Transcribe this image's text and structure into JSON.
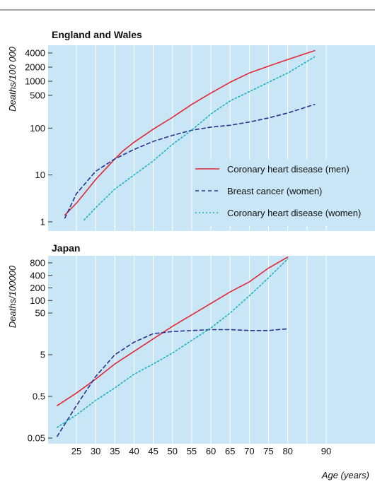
{
  "chart_data": [
    {
      "type": "line",
      "title": "England and Wales",
      "ylabel": "Deaths/100 000",
      "yscale": "log",
      "ylim": [
        0.8,
        5000
      ],
      "xlim": [
        20,
        95
      ],
      "yticks": [
        {
          "value": 1,
          "label": "1"
        },
        {
          "value": 10,
          "label": "10"
        },
        {
          "value": 100,
          "label": "100"
        },
        {
          "value": 500,
          "label": "500"
        },
        {
          "value": 1000,
          "label": "1000"
        },
        {
          "value": 2000,
          "label": "2000"
        },
        {
          "value": 4000,
          "label": "4000"
        }
      ],
      "legend_position": "lower-right",
      "series": [
        {
          "name": "Coronary heart disease (men)",
          "color": "#e32636",
          "dash": "solid",
          "x": [
            22,
            25,
            30,
            35,
            37,
            40,
            45,
            50,
            55,
            60,
            65,
            70,
            75,
            80,
            87
          ],
          "y": [
            1.4,
            2.5,
            8,
            22,
            32,
            50,
            95,
            170,
            320,
            560,
            950,
            1500,
            2100,
            2900,
            4500
          ]
        },
        {
          "name": "Breast cancer (women)",
          "color": "#2b2f8f",
          "dash": "dashed",
          "x": [
            22,
            25,
            30,
            35,
            40,
            45,
            50,
            55,
            60,
            65,
            70,
            75,
            80,
            87
          ],
          "y": [
            1.2,
            4,
            12,
            22,
            35,
            52,
            70,
            90,
            105,
            115,
            135,
            165,
            210,
            320
          ]
        },
        {
          "name": "Coronary heart disease (women)",
          "color": "#1ab0c4",
          "dash": "dotted",
          "x": [
            27,
            30,
            35,
            40,
            45,
            50,
            55,
            60,
            65,
            70,
            75,
            80,
            87
          ],
          "y": [
            1.1,
            2,
            5,
            10,
            20,
            45,
            90,
            200,
            380,
            600,
            950,
            1500,
            3300
          ]
        }
      ]
    },
    {
      "type": "line",
      "title": "Japan",
      "ylabel": "Deaths/100000",
      "xlabel": "Age (years)",
      "yscale": "log",
      "ylim": [
        0.04,
        1200
      ],
      "xlim": [
        20,
        95
      ],
      "xticks": [
        25,
        30,
        35,
        40,
        45,
        50,
        55,
        60,
        65,
        70,
        75,
        80,
        90
      ],
      "yticks": [
        {
          "value": 0.05,
          "label": "0.05"
        },
        {
          "value": 0.5,
          "label": "0.5"
        },
        {
          "value": 5,
          "label": "5"
        },
        {
          "value": 50,
          "label": "50"
        },
        {
          "value": 100,
          "label": "100"
        },
        {
          "value": 200,
          "label": "200"
        },
        {
          "value": 400,
          "label": "400"
        },
        {
          "value": 800,
          "label": "800"
        }
      ],
      "series": [
        {
          "name": "Coronary heart disease (men)",
          "color": "#e32636",
          "dash": "solid",
          "x": [
            20,
            25,
            30,
            35,
            40,
            45,
            50,
            55,
            60,
            65,
            70,
            75,
            80
          ],
          "y": [
            0.3,
            0.6,
            1.3,
            3,
            6,
            12,
            24,
            45,
            85,
            160,
            280,
            600,
            1100
          ]
        },
        {
          "name": "Breast cancer (women)",
          "color": "#2b2f8f",
          "dash": "dashed",
          "x": [
            20,
            25,
            30,
            35,
            40,
            45,
            50,
            55,
            60,
            65,
            70,
            75,
            80
          ],
          "y": [
            0.055,
            0.3,
            1.5,
            5,
            10,
            16,
            18,
            19,
            20,
            20,
            19,
            19,
            21
          ]
        },
        {
          "name": "Coronary heart disease (women)",
          "color": "#1ab0c4",
          "dash": "dotted",
          "x": [
            20,
            25,
            30,
            35,
            40,
            45,
            50,
            55,
            60,
            65,
            70,
            75,
            80
          ],
          "y": [
            0.09,
            0.18,
            0.4,
            0.8,
            1.7,
            3,
            5.5,
            11,
            22,
            50,
            130,
            350,
            1000
          ]
        }
      ]
    }
  ]
}
